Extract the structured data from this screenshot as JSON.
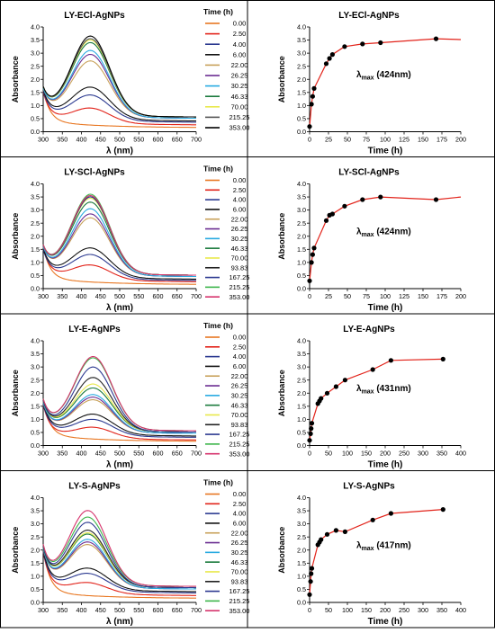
{
  "chart_data": [
    {
      "id": "p1",
      "type": "line",
      "title": "LY-ECl-AgNPs",
      "xlabel": "λ (nm)",
      "ylabel": "Absorbance",
      "xlim": [
        300,
        700
      ],
      "ylim": [
        0,
        4.0
      ],
      "xticks": [
        300,
        350,
        400,
        450,
        500,
        550,
        600,
        650,
        700
      ],
      "yticks": [
        0.0,
        0.5,
        1.0,
        1.5,
        2.0,
        2.5,
        3.0,
        3.5,
        4.0
      ],
      "legend_title": "Time (h)",
      "grid": false,
      "series": [
        {
          "name": "0.00",
          "color": "#e87722",
          "base": 0.15,
          "peak": 0.0,
          "uv": 1.2,
          "wl": 424
        },
        {
          "name": "2.50",
          "color": "#e2231a",
          "base": 0.25,
          "peak": 0.55,
          "uv": 1.0,
          "wl": 424
        },
        {
          "name": "4.00",
          "color": "#2b3990",
          "base": 0.35,
          "peak": 0.95,
          "uv": 0.9,
          "wl": 424
        },
        {
          "name": "6.00",
          "color": "#111111",
          "base": 0.4,
          "peak": 1.2,
          "uv": 0.9,
          "wl": 424
        },
        {
          "name": "22.00",
          "color": "#c8a15a",
          "base": 0.5,
          "peak": 2.1,
          "uv": 0.8,
          "wl": 424
        },
        {
          "name": "26.25",
          "color": "#6a2c91",
          "base": 0.5,
          "peak": 2.35,
          "uv": 0.8,
          "wl": 424
        },
        {
          "name": "30.25",
          "color": "#27aae1",
          "base": 0.5,
          "peak": 2.5,
          "uv": 0.8,
          "wl": 424
        },
        {
          "name": "46.33",
          "color": "#1a7a3c",
          "base": 0.55,
          "peak": 2.75,
          "uv": 0.8,
          "wl": 424
        },
        {
          "name": "70.00",
          "color": "#e8e84a",
          "base": 0.55,
          "peak": 2.85,
          "uv": 0.8,
          "wl": 424
        },
        {
          "name": "215.25",
          "color": "#555555",
          "base": 0.55,
          "peak": 2.9,
          "uv": 0.8,
          "wl": 424
        },
        {
          "name": "353.00",
          "color": "#000000",
          "base": 0.55,
          "peak": 3.0,
          "uv": 0.8,
          "wl": 424
        }
      ]
    },
    {
      "id": "k1",
      "type": "scatter",
      "title": "LY-ECl-AgNPs",
      "xlabel": "Time (h)",
      "ylabel": "Absorbance",
      "annotation_main": "λ",
      "annotation_sub": "max",
      "annotation_rest": " (424nm)",
      "xlim": [
        0,
        200
      ],
      "ylim": [
        0,
        4.0
      ],
      "xticks": [
        0,
        25,
        50,
        75,
        100,
        125,
        150,
        175,
        200
      ],
      "yticks": [
        0.0,
        0.5,
        1.0,
        1.5,
        2.0,
        2.5,
        3.0,
        3.5,
        4.0
      ],
      "line_color": "#e2231a",
      "x": [
        0,
        2.5,
        4,
        6,
        22,
        26.25,
        30.25,
        46.33,
        70,
        93.83,
        167.25,
        200
      ],
      "y": [
        0.2,
        1.05,
        1.35,
        1.65,
        2.6,
        2.8,
        2.95,
        3.25,
        3.35,
        3.4,
        3.55,
        3.52
      ],
      "markers_count": 11
    },
    {
      "id": "p2",
      "type": "line",
      "title": "LY-SCl-AgNPs",
      "xlabel": "λ (nm)",
      "ylabel": "Absorbance",
      "xlim": [
        300,
        700
      ],
      "ylim": [
        0,
        4.0
      ],
      "xticks": [
        300,
        350,
        400,
        450,
        500,
        550,
        600,
        650,
        700
      ],
      "yticks": [
        0.0,
        0.5,
        1.0,
        1.5,
        2.0,
        2.5,
        3.0,
        3.5,
        4.0
      ],
      "legend_title": "Time (h)",
      "grid": false,
      "series": [
        {
          "name": "0.00",
          "color": "#e87722",
          "base": 0.15,
          "peak": 0.0,
          "uv": 1.2,
          "wl": 424
        },
        {
          "name": "2.50",
          "color": "#e2231a",
          "base": 0.25,
          "peak": 0.55,
          "uv": 1.0,
          "wl": 424
        },
        {
          "name": "4.00",
          "color": "#2b3990",
          "base": 0.3,
          "peak": 0.9,
          "uv": 0.9,
          "wl": 424
        },
        {
          "name": "6.00",
          "color": "#111111",
          "base": 0.35,
          "peak": 1.1,
          "uv": 0.9,
          "wl": 424
        },
        {
          "name": "22.00",
          "color": "#c8a15a",
          "base": 0.45,
          "peak": 2.15,
          "uv": 0.8,
          "wl": 424
        },
        {
          "name": "26.25",
          "color": "#6a2c91",
          "base": 0.45,
          "peak": 2.3,
          "uv": 0.8,
          "wl": 424
        },
        {
          "name": "30.25",
          "color": "#27aae1",
          "base": 0.45,
          "peak": 2.5,
          "uv": 0.8,
          "wl": 424
        },
        {
          "name": "46.33",
          "color": "#1a7a3c",
          "base": 0.5,
          "peak": 2.7,
          "uv": 0.8,
          "wl": 424
        },
        {
          "name": "70.00",
          "color": "#e8e84a",
          "base": 0.5,
          "peak": 2.85,
          "uv": 0.8,
          "wl": 424
        },
        {
          "name": "93.83",
          "color": "#222222",
          "base": 0.5,
          "peak": 2.9,
          "uv": 0.8,
          "wl": 424
        },
        {
          "name": "167.25",
          "color": "#2b3990",
          "base": 0.5,
          "peak": 2.9,
          "uv": 0.8,
          "wl": 424
        },
        {
          "name": "215.25",
          "color": "#3cb54a",
          "base": 0.5,
          "peak": 3.0,
          "uv": 0.8,
          "wl": 424
        },
        {
          "name": "353.00",
          "color": "#d6336c",
          "base": 0.5,
          "peak": 2.95,
          "uv": 0.8,
          "wl": 424
        }
      ]
    },
    {
      "id": "k2",
      "type": "scatter",
      "title": "LY-SCl-AgNPs",
      "xlabel": "Time (h)",
      "ylabel": "Absorbance",
      "annotation_main": "λ",
      "annotation_sub": "max",
      "annotation_rest": " (424nm)",
      "xlim": [
        0,
        200
      ],
      "ylim": [
        0,
        4.0
      ],
      "xticks": [
        0,
        25,
        50,
        75,
        100,
        125,
        150,
        175,
        200
      ],
      "yticks": [
        0.0,
        0.5,
        1.0,
        1.5,
        2.0,
        2.5,
        3.0,
        3.5,
        4.0
      ],
      "line_color": "#e2231a",
      "x": [
        0,
        2.5,
        4,
        6,
        22,
        26.25,
        30.25,
        46.33,
        70,
        93.83,
        167.25,
        200
      ],
      "y": [
        0.3,
        1.0,
        1.3,
        1.55,
        2.6,
        2.8,
        2.85,
        3.15,
        3.4,
        3.5,
        3.4,
        3.5
      ],
      "markers_count": 11
    },
    {
      "id": "p3",
      "type": "line",
      "title": "LY-E-AgNPs",
      "xlabel": "λ (nm)",
      "ylabel": "Absorbance",
      "xlim": [
        300,
        700
      ],
      "ylim": [
        0,
        4.0
      ],
      "xticks": [
        300,
        350,
        400,
        450,
        500,
        550,
        600,
        650,
        700
      ],
      "yticks": [
        0.0,
        0.5,
        1.0,
        1.5,
        2.0,
        2.5,
        3.0,
        3.5,
        4.0
      ],
      "legend_title": "Time (h)",
      "grid": false,
      "series": [
        {
          "name": "0.00",
          "color": "#e87722",
          "base": 0.15,
          "peak": 0.0,
          "uv": 1.3,
          "wl": 431
        },
        {
          "name": "2.50",
          "color": "#e2231a",
          "base": 0.2,
          "peak": 0.4,
          "uv": 1.1,
          "wl": 431
        },
        {
          "name": "4.00",
          "color": "#2b3990",
          "base": 0.3,
          "peak": 0.6,
          "uv": 1.0,
          "wl": 431
        },
        {
          "name": "6.00",
          "color": "#111111",
          "base": 0.35,
          "peak": 0.75,
          "uv": 1.0,
          "wl": 431
        },
        {
          "name": "22.00",
          "color": "#c8a15a",
          "base": 0.45,
          "peak": 1.2,
          "uv": 0.9,
          "wl": 431
        },
        {
          "name": "26.25",
          "color": "#6a2c91",
          "base": 0.45,
          "peak": 1.3,
          "uv": 0.9,
          "wl": 431
        },
        {
          "name": "30.25",
          "color": "#27aae1",
          "base": 0.45,
          "peak": 1.4,
          "uv": 0.9,
          "wl": 431
        },
        {
          "name": "46.33",
          "color": "#1a7a3c",
          "base": 0.5,
          "peak": 1.6,
          "uv": 0.9,
          "wl": 431
        },
        {
          "name": "70.00",
          "color": "#e8e84a",
          "base": 0.5,
          "peak": 1.75,
          "uv": 0.9,
          "wl": 431
        },
        {
          "name": "93.83",
          "color": "#222222",
          "base": 0.5,
          "peak": 2.0,
          "uv": 0.9,
          "wl": 431
        },
        {
          "name": "167.25",
          "color": "#2b3990",
          "base": 0.5,
          "peak": 2.4,
          "uv": 0.9,
          "wl": 431
        },
        {
          "name": "215.25",
          "color": "#3cb54a",
          "base": 0.55,
          "peak": 2.7,
          "uv": 0.9,
          "wl": 431
        },
        {
          "name": "353.00",
          "color": "#d6336c",
          "base": 0.55,
          "peak": 2.75,
          "uv": 0.9,
          "wl": 431
        }
      ]
    },
    {
      "id": "k3",
      "type": "scatter",
      "title": "LY-E-AgNPs",
      "xlabel": "Time (h)",
      "ylabel": "Absorbance",
      "annotation_main": "λ",
      "annotation_sub": "max",
      "annotation_rest": " (431nm)",
      "xlim": [
        0,
        400
      ],
      "ylim": [
        0,
        4.0
      ],
      "xticks": [
        0,
        50,
        100,
        150,
        200,
        250,
        300,
        350,
        400
      ],
      "yticks": [
        0.0,
        0.5,
        1.0,
        1.5,
        2.0,
        2.5,
        3.0,
        3.5,
        4.0
      ],
      "line_color": "#e2231a",
      "x": [
        0,
        2.5,
        4,
        6,
        22,
        26.25,
        30.25,
        46.33,
        70,
        93.83,
        167.25,
        215.25,
        353
      ],
      "y": [
        0.2,
        0.45,
        0.65,
        0.85,
        1.6,
        1.7,
        1.8,
        2.0,
        2.25,
        2.5,
        2.9,
        3.25,
        3.3
      ],
      "markers_count": 13
    },
    {
      "id": "p4",
      "type": "line",
      "title": "LY-S-AgNPs",
      "xlabel": "λ (nm)",
      "ylabel": "Absorbance",
      "xlim": [
        300,
        700
      ],
      "ylim": [
        0,
        4.0
      ],
      "xticks": [
        300,
        350,
        400,
        450,
        500,
        550,
        600,
        650,
        700
      ],
      "yticks": [
        0.0,
        0.5,
        1.0,
        1.5,
        2.0,
        2.5,
        3.0,
        3.5,
        4.0
      ],
      "legend_title": "Time (h)",
      "grid": false,
      "series": [
        {
          "name": "0.00",
          "color": "#e87722",
          "base": 0.15,
          "peak": 0.0,
          "uv": 1.6,
          "wl": 417
        },
        {
          "name": "2.50",
          "color": "#e2231a",
          "base": 0.25,
          "peak": 0.4,
          "uv": 1.4,
          "wl": 417
        },
        {
          "name": "4.00",
          "color": "#2b3990",
          "base": 0.35,
          "peak": 0.65,
          "uv": 1.3,
          "wl": 417
        },
        {
          "name": "6.00",
          "color": "#111111",
          "base": 0.4,
          "peak": 0.8,
          "uv": 1.3,
          "wl": 417
        },
        {
          "name": "22.00",
          "color": "#c8a15a",
          "base": 0.5,
          "peak": 1.6,
          "uv": 1.2,
          "wl": 417
        },
        {
          "name": "26.25",
          "color": "#6a2c91",
          "base": 0.5,
          "peak": 1.7,
          "uv": 1.2,
          "wl": 417
        },
        {
          "name": "30.25",
          "color": "#27aae1",
          "base": 0.5,
          "peak": 1.8,
          "uv": 1.2,
          "wl": 417
        },
        {
          "name": "46.33",
          "color": "#1a7a3c",
          "base": 0.55,
          "peak": 1.95,
          "uv": 1.2,
          "wl": 417
        },
        {
          "name": "70.00",
          "color": "#e8e84a",
          "base": 0.55,
          "peak": 2.0,
          "uv": 1.2,
          "wl": 417
        },
        {
          "name": "93.83",
          "color": "#222222",
          "base": 0.55,
          "peak": 2.1,
          "uv": 1.2,
          "wl": 417
        },
        {
          "name": "167.25",
          "color": "#2b3990",
          "base": 0.55,
          "peak": 2.4,
          "uv": 1.2,
          "wl": 417
        },
        {
          "name": "215.25",
          "color": "#3cb54a",
          "base": 0.6,
          "peak": 2.55,
          "uv": 1.2,
          "wl": 417
        },
        {
          "name": "353.00",
          "color": "#d6336c",
          "base": 0.6,
          "peak": 2.8,
          "uv": 1.2,
          "wl": 417
        }
      ]
    },
    {
      "id": "k4",
      "type": "scatter",
      "title": "LY-S-AgNPs",
      "xlabel": "Time (h)",
      "ylabel": "Absorbance",
      "annotation_main": "λ",
      "annotation_sub": "max",
      "annotation_rest": " (417nm)",
      "xlim": [
        0,
        400
      ],
      "ylim": [
        0,
        4.0
      ],
      "xticks": [
        0,
        50,
        100,
        150,
        200,
        250,
        300,
        350,
        400
      ],
      "yticks": [
        0.0,
        0.5,
        1.0,
        1.5,
        2.0,
        2.5,
        3.0,
        3.5,
        4.0
      ],
      "line_color": "#e2231a",
      "x": [
        0,
        2.5,
        4,
        6,
        22,
        26.25,
        30.25,
        46.33,
        70,
        93.83,
        167.25,
        215.25,
        353
      ],
      "y": [
        0.3,
        0.8,
        1.1,
        1.3,
        2.2,
        2.3,
        2.4,
        2.6,
        2.75,
        2.7,
        3.15,
        3.4,
        3.55
      ],
      "markers_count": 13
    }
  ]
}
